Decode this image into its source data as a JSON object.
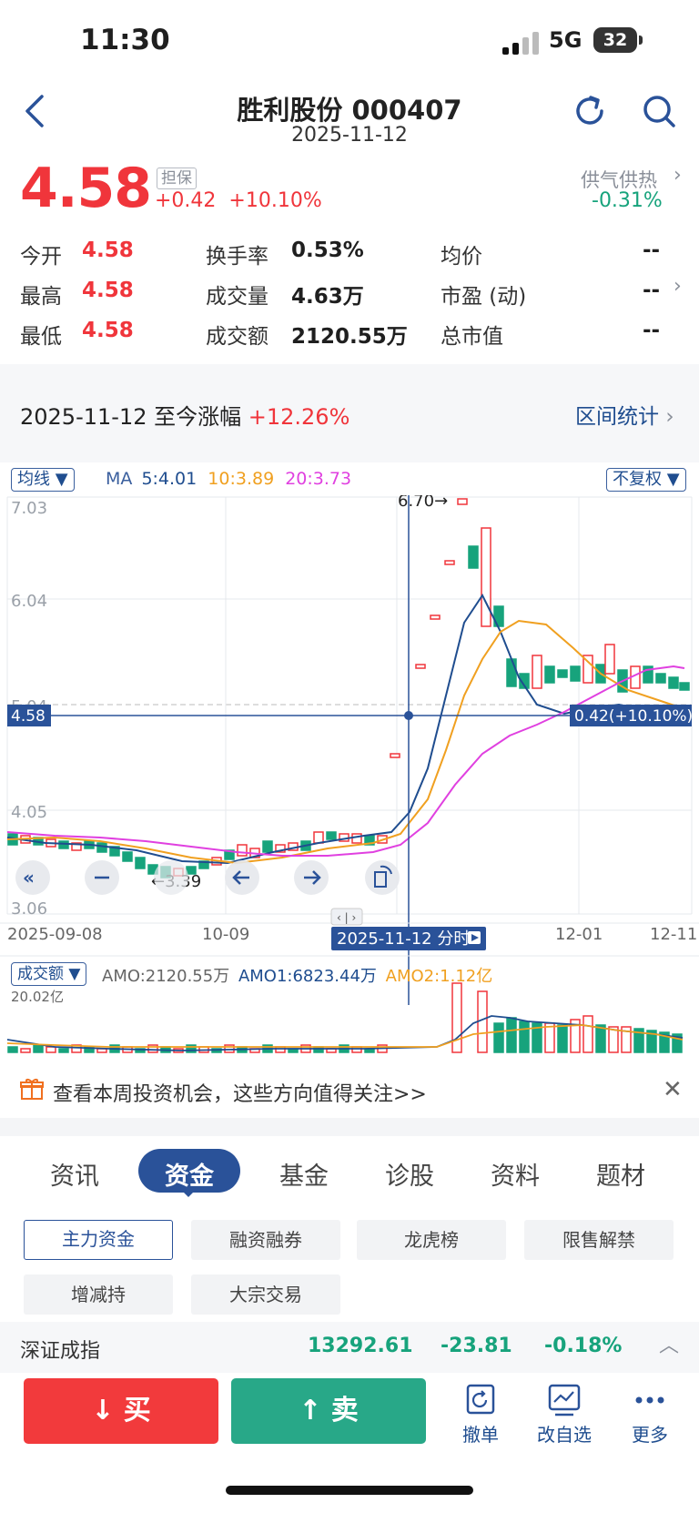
{
  "status": {
    "time": "11:30",
    "network": "5G",
    "battery": "32"
  },
  "header": {
    "title": "胜利股份 000407",
    "date": "2025-11-12"
  },
  "quote": {
    "price": "4.58",
    "tag": "担保",
    "change": "+0.42",
    "change_pct": "+10.10%",
    "supply_label": "供气供热",
    "supply_value": "-0.31%"
  },
  "stats": [
    {
      "label": "今开",
      "value": "4.58"
    },
    {
      "label": "最高",
      "value": "4.58"
    },
    {
      "label": "最低",
      "value": "4.58"
    },
    {
      "label": "换手率",
      "value": "0.53%"
    },
    {
      "label": "成交量",
      "value": "4.63万"
    },
    {
      "label": "成交额",
      "value": "2120.55万"
    },
    {
      "label": "均价",
      "value": "--"
    },
    {
      "label": "市盈 (动)",
      "value": "--"
    },
    {
      "label": "总市值",
      "value": "--"
    }
  ],
  "range": {
    "text": "2025-11-12 至今涨幅",
    "value": "+12.26%",
    "stat_label": "区间统计"
  },
  "chart": {
    "ma_select": "均线",
    "ma_label": "MA",
    "ma5": "5:4.01",
    "ma10": "10:3.89",
    "ma20": "20:3.73",
    "adjust_select": "不复权",
    "price_ticks": [
      "7.03",
      "6.04",
      "5.04",
      "4.05",
      "3.06"
    ],
    "cross_price": "4.58",
    "cross_change": "0.42(+10.10%)",
    "high_note": "6.70→",
    "low_note": "←3.39",
    "date_left": "2025-09-08",
    "date_mid": "10-09",
    "date_cursor": "2025-11-12 分时",
    "date_r1": "12-01",
    "date_r2": "12-11",
    "amount_select": "成交额",
    "amo": "AMO:2120.55万",
    "amo1": "AMO1:6823.44万",
    "amo2": "AMO2:1.12亿",
    "amount_tick": "20.02亿",
    "colors": {
      "ma5": "#1f4d8f",
      "ma10": "#f0a020",
      "ma20": "#e040e0",
      "up": "#f0353b",
      "down": "#17a37c"
    }
  },
  "chart_data": {
    "type": "candlestick",
    "ylim": [
      3.06,
      7.03
    ],
    "y_ticks": [
      7.03,
      6.04,
      5.04,
      4.05,
      3.06
    ],
    "x_ticks": [
      "2025-09-08",
      "10-09",
      "12-01",
      "12-11"
    ],
    "annotations": [
      "6.70→",
      "←3.39"
    ],
    "series": [
      {
        "name": "MA5",
        "value": 4.01
      },
      {
        "name": "MA10",
        "value": 3.89
      },
      {
        "name": "MA20",
        "value": 3.73
      }
    ]
  },
  "promo": {
    "text": "查看本周投资机会，这些方向值得关注>>"
  },
  "tabs": [
    "资讯",
    "资金",
    "基金",
    "诊股",
    "资料",
    "题材"
  ],
  "chips": [
    "主力资金",
    "融资融券",
    "龙虎榜",
    "限售解禁",
    "增减持",
    "大宗交易"
  ],
  "index": {
    "name": "深证成指",
    "value": "13292.61",
    "change": "-23.81",
    "pct": "-0.18%"
  },
  "actions": {
    "buy": "买",
    "sell": "卖",
    "cancel": "撤单",
    "watch": "改自选",
    "more": "更多"
  }
}
